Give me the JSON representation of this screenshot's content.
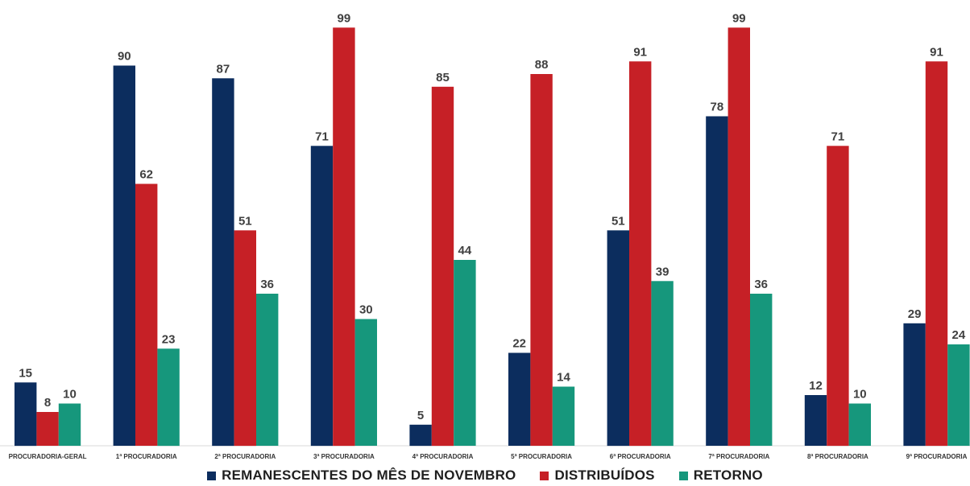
{
  "chart_data": {
    "type": "bar",
    "categories": [
      "PROCURADORIA-GERAL",
      "1ª PROCURADORIA",
      "2ª PROCURADORIA",
      "3ª PROCURADORIA",
      "4ª PROCURADORIA",
      "5ª PROCURADORIA",
      "6ª PROCURADORIA",
      "7ª PROCURADORIA",
      "8ª PROCURADORIA",
      "9ª PROCURADORIA"
    ],
    "series": [
      {
        "name": "REMANESCENTES DO MÊS DE NOVEMBRO",
        "color": "#0c2d5e",
        "values": [
          15,
          90,
          87,
          71,
          5,
          22,
          51,
          78,
          12,
          29
        ]
      },
      {
        "name": "DISTRIBUÍDOS",
        "color": "#c62026",
        "values": [
          8,
          62,
          51,
          99,
          85,
          88,
          91,
          99,
          71,
          91
        ]
      },
      {
        "name": "RETORNO",
        "color": "#16977c",
        "values": [
          10,
          23,
          36,
          30,
          44,
          14,
          39,
          36,
          10,
          24
        ]
      }
    ],
    "ylim": [
      0,
      100
    ],
    "grid": false,
    "legend_position": "bottom"
  }
}
